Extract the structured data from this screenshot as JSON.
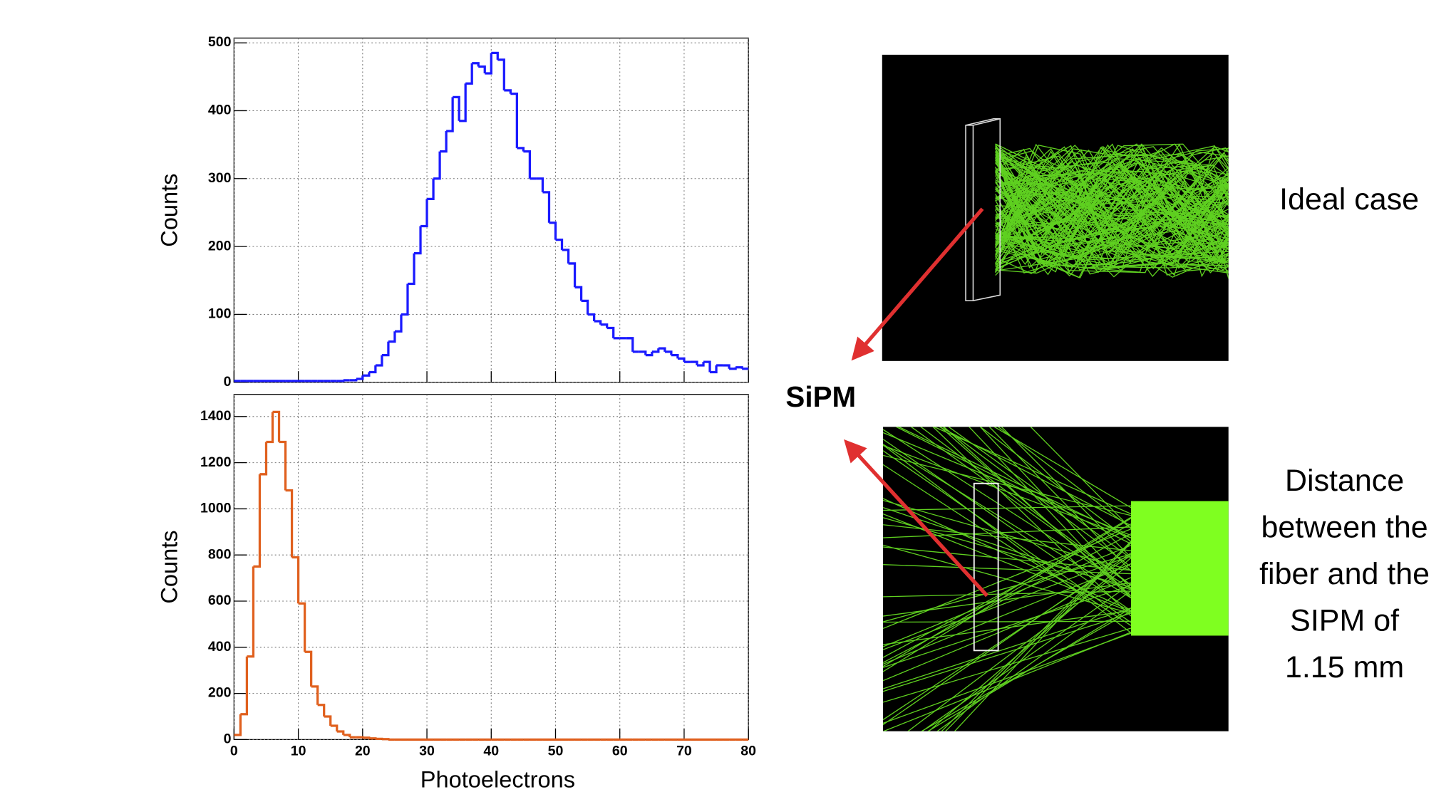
{
  "chart_data": [
    {
      "type": "histogram",
      "ylabel": "Counts",
      "color": "#1a1aff",
      "bins": [
        0,
        1,
        2,
        3,
        4,
        5,
        6,
        7,
        8,
        9,
        10,
        11,
        12,
        13,
        14,
        15,
        16,
        17,
        18,
        19,
        20,
        21,
        22,
        23,
        24,
        25,
        26,
        27,
        28,
        29,
        30,
        31,
        32,
        33,
        34,
        35,
        36,
        37,
        38,
        39,
        40,
        41,
        42,
        43,
        44,
        45,
        46,
        47,
        48,
        49,
        50,
        51,
        52,
        53,
        54,
        55,
        56,
        57,
        58,
        59,
        60,
        61,
        62,
        63,
        64,
        65,
        66,
        67,
        68,
        69,
        70,
        71,
        72,
        73,
        74,
        75,
        76,
        77,
        78,
        79,
        80
      ],
      "values": [
        2,
        2,
        2,
        2,
        2,
        2,
        2,
        2,
        2,
        2,
        2,
        2,
        2,
        2,
        2,
        2,
        2,
        3,
        3,
        5,
        10,
        15,
        25,
        40,
        60,
        75,
        100,
        145,
        190,
        230,
        270,
        300,
        340,
        370,
        420,
        385,
        440,
        470,
        465,
        455,
        485,
        475,
        430,
        425,
        345,
        340,
        300,
        300,
        280,
        235,
        210,
        195,
        175,
        140,
        120,
        100,
        90,
        85,
        80,
        65,
        65,
        65,
        45,
        45,
        40,
        45,
        50,
        45,
        40,
        35,
        30,
        30,
        25,
        30,
        15,
        25,
        25,
        20,
        22,
        20
      ],
      "xlim": [
        0,
        80
      ],
      "xticks": [
        0,
        10,
        20,
        30,
        40,
        50,
        60,
        70,
        80
      ],
      "ylim": [
        0,
        507
      ],
      "yticks": [
        0,
        100,
        200,
        300,
        400,
        500
      ],
      "grid": true
    },
    {
      "type": "histogram",
      "ylabel": "Counts",
      "xlabel": "Photoelectrons",
      "color": "#e0601e",
      "bins": [
        0,
        1,
        2,
        3,
        4,
        5,
        6,
        7,
        8,
        9,
        10,
        11,
        12,
        13,
        14,
        15,
        16,
        17,
        18,
        19,
        20,
        21,
        22,
        23,
        24,
        25,
        26,
        27,
        28,
        29,
        30,
        31,
        32,
        33,
        34,
        35,
        36,
        37,
        38,
        39,
        40,
        41,
        42,
        43,
        44,
        45,
        46,
        47,
        48,
        49,
        50,
        51,
        52,
        53,
        54,
        55,
        56,
        57,
        58,
        59,
        60,
        61,
        62,
        63,
        64,
        65,
        66,
        67,
        68,
        69,
        70,
        71,
        72,
        73,
        74,
        75,
        76,
        77,
        78,
        79,
        80
      ],
      "values": [
        20,
        110,
        360,
        750,
        1150,
        1290,
        1420,
        1290,
        1080,
        790,
        590,
        380,
        230,
        150,
        100,
        60,
        35,
        20,
        10,
        10,
        8,
        5,
        3,
        2,
        0,
        0,
        0,
        0,
        0,
        0,
        0,
        0,
        0,
        0,
        0,
        0,
        0,
        0,
        0,
        0,
        0,
        0,
        0,
        0,
        0,
        0,
        0,
        0,
        0,
        0,
        0,
        0,
        0,
        0,
        0,
        0,
        0,
        0,
        0,
        0,
        0,
        0,
        0,
        0,
        0,
        0,
        0,
        0,
        0,
        0,
        0,
        0,
        0,
        0,
        0,
        0,
        0,
        0,
        0,
        0
      ],
      "xlim": [
        0,
        80
      ],
      "xticks": [
        0,
        10,
        20,
        30,
        40,
        50,
        60,
        70,
        80
      ],
      "ylim": [
        0,
        1496
      ],
      "yticks": [
        0,
        200,
        400,
        600,
        800,
        1000,
        1200,
        1400
      ],
      "grid": true
    }
  ],
  "annotations": {
    "ideal": "Ideal case",
    "sipm": "SiPM",
    "distance": [
      "Distance",
      "between the",
      "fiber and the",
      "SIPM of",
      "1.15 mm"
    ]
  }
}
